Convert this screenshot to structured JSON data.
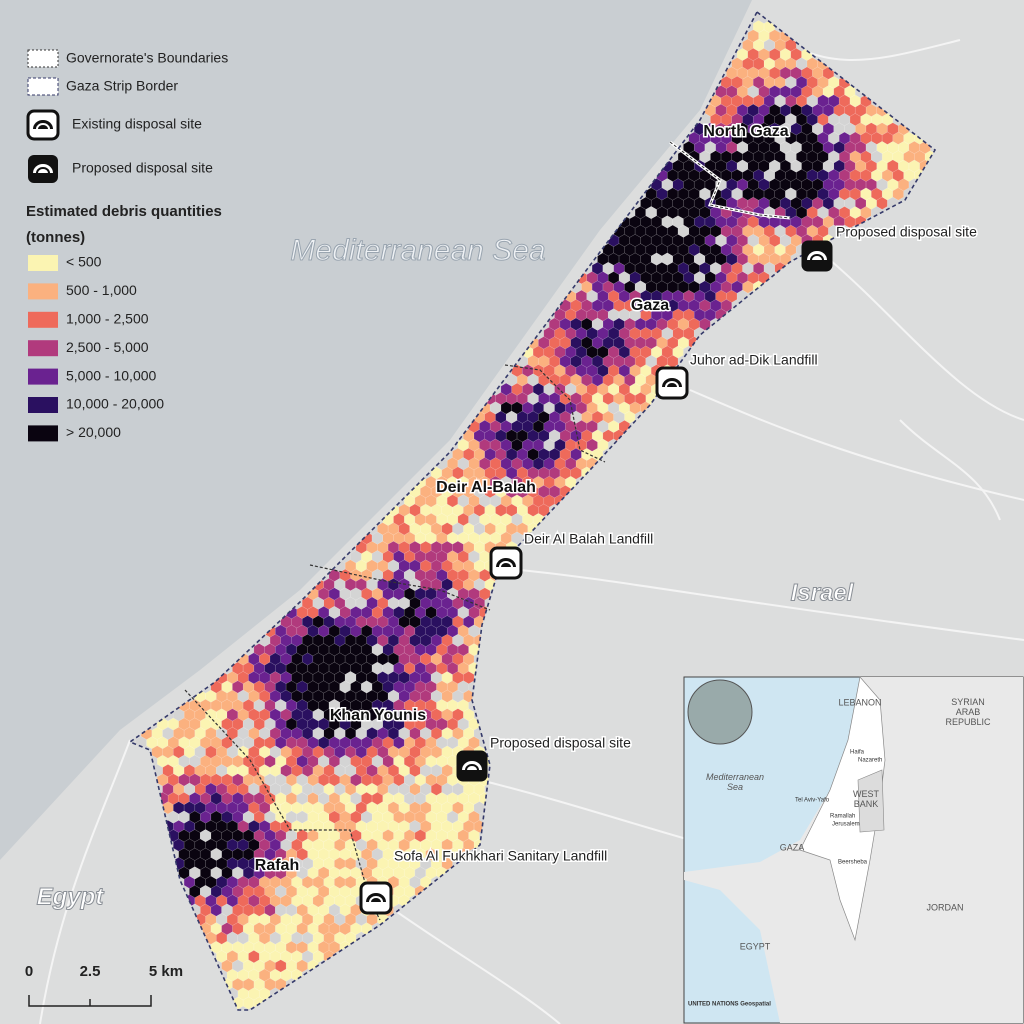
{
  "legend": {
    "boundaries": [
      {
        "label": "Governorate's Boundaries"
      },
      {
        "label": "Gaza Strip Border"
      }
    ],
    "site_types": [
      {
        "label": "Existing disposal site"
      },
      {
        "label": "Proposed disposal site"
      }
    ],
    "title": [
      "Estimated debris quantities",
      "(tonnes)"
    ],
    "classes": [
      {
        "label": "< 500",
        "color": "#fbf4b2"
      },
      {
        "label": "500 - 1,000",
        "color": "#fbb17f"
      },
      {
        "label": "1,000 - 2,500",
        "color": "#ee6a5b"
      },
      {
        "label": "2,500 - 5,000",
        "color": "#b13a7d"
      },
      {
        "label": "5,000 - 10,000",
        "color": "#6a2290"
      },
      {
        "label": "10,000 - 20,000",
        "color": "#2a1060"
      },
      {
        "label": "> 20,000",
        "color": "#0a0410"
      }
    ]
  },
  "map_labels": {
    "sea": "Mediterranean Sea",
    "israel": "Israel",
    "egypt": "Egypt",
    "governorates": [
      "North Gaza",
      "Gaza",
      "Deir Al-Balah",
      "Khan Younis",
      "Rafah"
    ]
  },
  "sites": [
    {
      "label": "Proposed disposal site",
      "type": "proposed"
    },
    {
      "label": "Juhor ad-Dik Landfill",
      "type": "existing"
    },
    {
      "label": "Deir Al Balah Landfill",
      "type": "existing"
    },
    {
      "label": "Proposed disposal site",
      "type": "proposed"
    },
    {
      "label": "Sofa Al Fukhkhari Sanitary Landfill",
      "type": "existing"
    }
  ],
  "scale_bar": [
    "0",
    "2.5",
    "5 km"
  ],
  "inset": {
    "countries": [
      "LEBANON",
      "SYRIAN\nARAB\nREPUBLIC",
      "WEST\nBANK",
      "GAZA",
      "JORDAN",
      "EGYPT"
    ],
    "sea": "Mediterranean\nSea",
    "cities": [
      "Haifa",
      "Nazareth",
      "Tel Aviv-Yafo",
      "Ramallah",
      "Jerusalem",
      "Beersheba"
    ],
    "credit": "UNITED NATIONS Geospatial"
  }
}
